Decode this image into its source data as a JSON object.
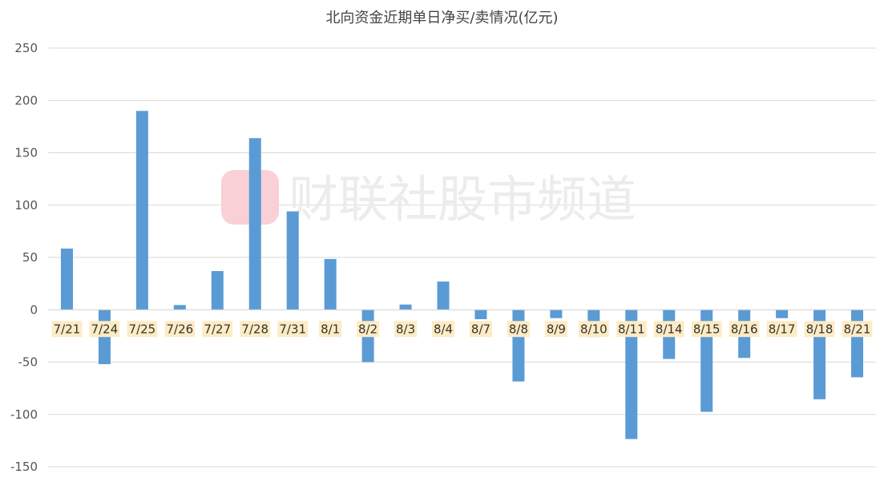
{
  "chart_data": {
    "type": "bar",
    "title": "北向资金近期单日净买/卖情况(亿元)",
    "xlabel": "",
    "ylabel": "",
    "ylim": [
      -150,
      250
    ],
    "yticks": [
      250,
      200,
      150,
      100,
      50,
      0,
      -50,
      -100,
      -150
    ],
    "grid": true,
    "categories": [
      "7/21",
      "7/24",
      "7/25",
      "7/26",
      "7/27",
      "7/28",
      "7/31",
      "8/1",
      "8/2",
      "8/3",
      "8/4",
      "8/7",
      "8/8",
      "8/9",
      "8/10",
      "8/11",
      "8/14",
      "8/15",
      "8/16",
      "8/17",
      "8/18",
      "8/21"
    ],
    "values": [
      58.5,
      -52,
      190,
      4.5,
      37,
      164,
      94,
      48.5,
      -50,
      5,
      27,
      -9,
      -68.5,
      -8,
      -26,
      -123.5,
      -47,
      -97.5,
      -46,
      -8,
      -85.5,
      -64.5
    ],
    "bar_color": "#5b9bd5",
    "tick_label_bg": "#fdebc4"
  },
  "watermark": {
    "text": "财联社股市频道",
    "logo_color": "#f8d0d6"
  }
}
